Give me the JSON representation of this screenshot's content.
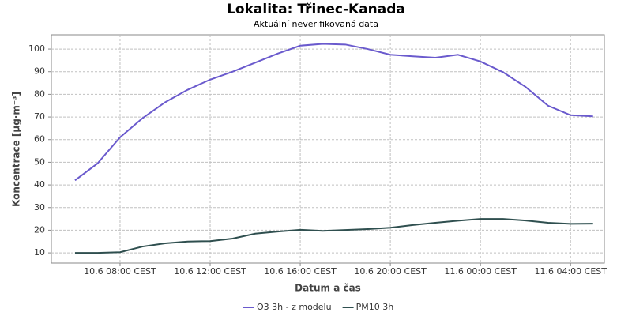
{
  "chart_data": {
    "type": "line",
    "title": "Lokalita: Třinec-Kanada",
    "subtitle": "Aktuální neverifikovaná data",
    "x_label": "Datum a čas",
    "y_label": "Koncentrace [µg·m⁻³]",
    "x": [
      6,
      7,
      8,
      9,
      10,
      11,
      12,
      13,
      14,
      15,
      16,
      17,
      18,
      19,
      20,
      21,
      22,
      23,
      24,
      25,
      26,
      27,
      28,
      29
    ],
    "series": [
      {
        "name": "O3 3h - z modelu",
        "color": "#6a5acd",
        "values": [
          42,
          49.5,
          61,
          69.5,
          76.5,
          82,
          86.5,
          90,
          94,
          98,
          101.5,
          102.3,
          102,
          100,
          97.5,
          96.8,
          96.2,
          97.5,
          94.5,
          89.8,
          83.3,
          75,
          70.8,
          70.3
        ]
      },
      {
        "name": "PM10 3h",
        "color": "#2f4f4f",
        "values": [
          10,
          10,
          10.3,
          12.8,
          14.2,
          15,
          15.2,
          16.3,
          18.5,
          19.4,
          20.2,
          19.7,
          20.1,
          20.5,
          21.1,
          22.3,
          23.3,
          24.2,
          25,
          25,
          24.3,
          23.3,
          22.8,
          22.9
        ]
      }
    ],
    "xlim": [
      4.95,
      29.5
    ],
    "xticks": [
      {
        "value": 8,
        "label": "10.6 08:00 CEST"
      },
      {
        "value": 12,
        "label": "10.6 12:00 CEST"
      },
      {
        "value": 16,
        "label": "10.6 16:00 CEST"
      },
      {
        "value": 20,
        "label": "10.6 20:00 CEST"
      },
      {
        "value": 24,
        "label": "11.6 00:00 CEST"
      },
      {
        "value": 28,
        "label": "11.6 04:00 CEST"
      }
    ],
    "ylim": [
      5.5,
      106.3
    ],
    "yticks": [
      10,
      20,
      30,
      40,
      50,
      60,
      70,
      80,
      90,
      100
    ],
    "grid": true,
    "legend": "bottom"
  }
}
